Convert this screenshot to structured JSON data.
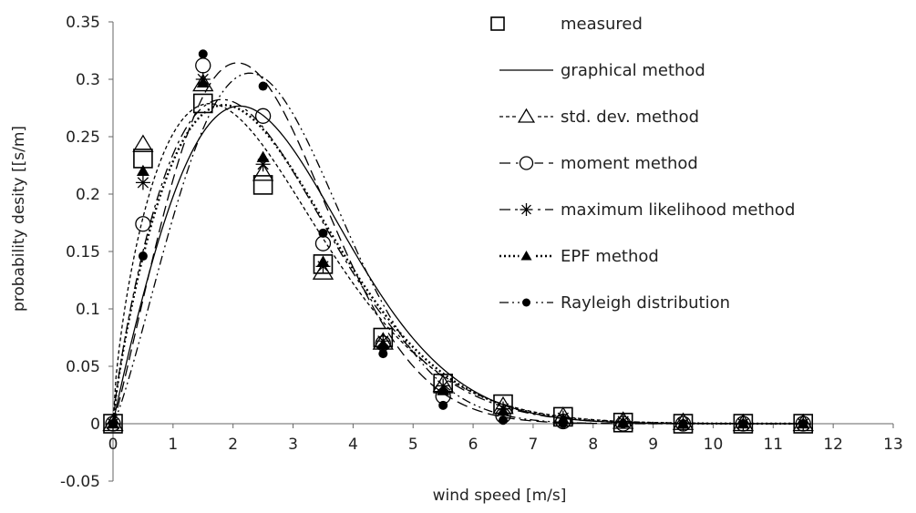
{
  "chart_data": {
    "type": "line",
    "title": "",
    "xlabel": "wind speed [m/s]",
    "ylabel": "probability desity [[s/m]",
    "xlim": [
      0,
      13
    ],
    "ylim": [
      -0.05,
      0.35
    ],
    "x_ticks": [
      "0",
      "1",
      "2",
      "3",
      "4",
      "5",
      "6",
      "7",
      "8",
      "9",
      "10",
      "11",
      "12",
      "13"
    ],
    "y_ticks": [
      "-0.05",
      "0",
      "0.05",
      "0.1",
      "0.15",
      "0.2",
      "0.25",
      "0.3",
      "0.35"
    ],
    "grid": false,
    "legend_position": "right",
    "marker_x": [
      0,
      0.5,
      1.5,
      2.5,
      3.5,
      4.5,
      5.5,
      6.5,
      7.5,
      8.5,
      9.5,
      10.5,
      11.5
    ],
    "series": [
      {
        "name": "measured",
        "marker": "open-square",
        "line": "none",
        "y": [
          0,
          0.231,
          0.279,
          0.208,
          0.139,
          0.075,
          0.035,
          0.017,
          0.006,
          0.001,
          0,
          0,
          0
        ]
      },
      {
        "name": "graphical method",
        "marker": "none",
        "line": "solid",
        "weibull": {
          "k": 1.95,
          "c": 3.05
        }
      },
      {
        "name": "std. dev. method",
        "marker": "open-triangle",
        "line": "short-dash",
        "weibull": {
          "k": 1.67,
          "c": 2.78
        },
        "y": [
          0,
          0.243,
          0.296,
          0.218,
          0.132,
          0.071,
          0.034,
          0.015,
          0.006,
          0.002,
          0.001,
          0,
          0
        ]
      },
      {
        "name": "moment method",
        "marker": "open-circle",
        "line": "long-dash",
        "weibull": {
          "k": 2.1,
          "c": 2.82
        },
        "y": [
          0,
          0.174,
          0.312,
          0.268,
          0.157,
          0.07,
          0.024,
          0.007,
          0.002,
          0,
          0,
          0,
          0
        ]
      },
      {
        "name": "maximum likelihood method",
        "marker": "asterisk",
        "line": "long-dash-dot",
        "weibull": {
          "k": 1.8,
          "c": 2.85
        },
        "y": [
          0,
          0.21,
          0.3,
          0.226,
          0.137,
          0.072,
          0.033,
          0.013,
          0.005,
          0.002,
          0,
          0,
          0
        ]
      },
      {
        "name": "EPF method",
        "marker": "filled-triangle",
        "line": "dotted",
        "weibull": {
          "k": 1.8,
          "c": 2.9
        },
        "y": [
          0,
          0.22,
          0.297,
          0.232,
          0.141,
          0.069,
          0.029,
          0.011,
          0.004,
          0.001,
          0,
          0,
          0
        ]
      },
      {
        "name": "Rayleigh distribution",
        "marker": "filled-circle",
        "line": "dash-dot-dot",
        "weibull": {
          "k": 2.2,
          "c": 3.0
        },
        "y": [
          0,
          0.146,
          0.322,
          0.294,
          0.166,
          0.061,
          0.016,
          0.003,
          0,
          0,
          0,
          0,
          0
        ]
      }
    ]
  }
}
